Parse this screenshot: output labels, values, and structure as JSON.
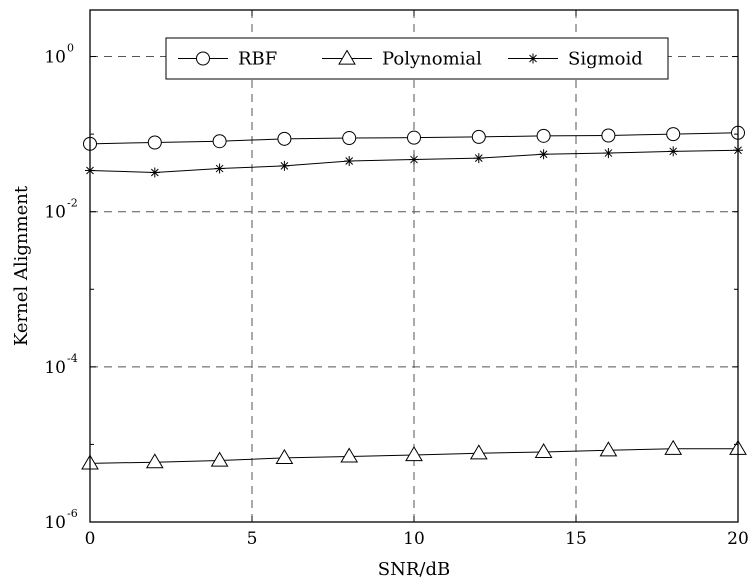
{
  "chart_data": {
    "type": "line",
    "title": "",
    "xlabel": "SNR/dB",
    "ylabel": "Kernel Alignment",
    "xlim": [
      0,
      20
    ],
    "ylim": [
      1e-06,
      1.0
    ],
    "y_scale": "log",
    "grid": true,
    "grid_style": "dashed",
    "legend_position": "top-center",
    "x_ticks": [
      0,
      5,
      10,
      15,
      20
    ],
    "x_tick_labels": [
      "0",
      "5",
      "10",
      "15",
      "20"
    ],
    "y_ticks": [
      {
        "value": 1e-06,
        "base": "10",
        "exp": "-6"
      },
      {
        "value": 0.0001,
        "base": "10",
        "exp": "-4"
      },
      {
        "value": 0.01,
        "base": "10",
        "exp": "-2"
      },
      {
        "value": 1.0,
        "base": "10",
        "exp": "0"
      }
    ],
    "x": [
      0,
      2,
      4,
      6,
      8,
      10,
      12,
      14,
      16,
      18,
      20
    ],
    "series": [
      {
        "name": "RBF",
        "marker": "circle",
        "color": "#000000",
        "values": [
          0.075,
          0.078,
          0.081,
          0.087,
          0.089,
          0.09,
          0.092,
          0.095,
          0.096,
          0.1,
          0.104
        ]
      },
      {
        "name": "Polynomial",
        "marker": "triangle",
        "color": "#000000",
        "values": [
          5.7e-06,
          5.9e-06,
          6.2e-06,
          6.7e-06,
          7e-06,
          7.3e-06,
          7.7e-06,
          8e-06,
          8.4e-06,
          8.8e-06,
          8.8e-06
        ]
      },
      {
        "name": "Sigmoid",
        "marker": "asterisk",
        "color": "#000000",
        "values": [
          0.034,
          0.032,
          0.036,
          0.039,
          0.045,
          0.047,
          0.049,
          0.055,
          0.057,
          0.06,
          0.062
        ]
      }
    ]
  }
}
